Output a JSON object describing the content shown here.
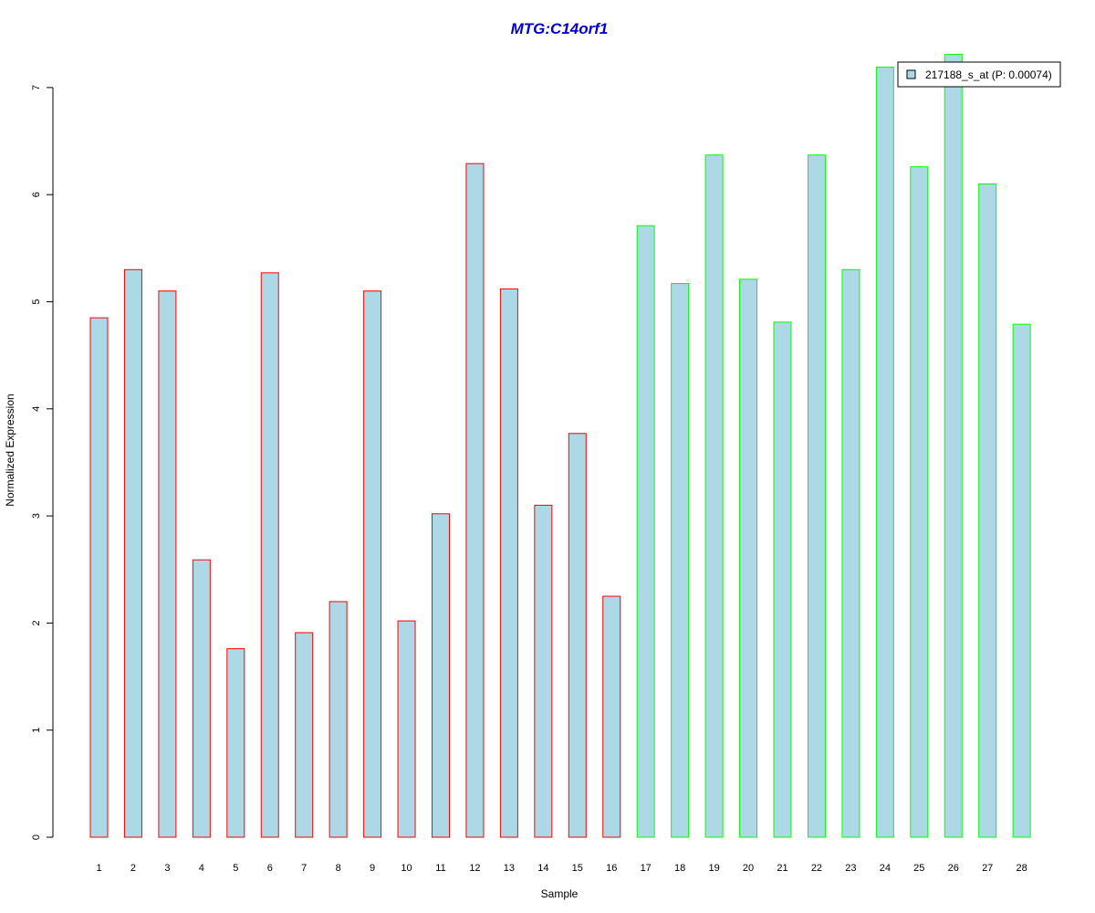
{
  "chart_data": {
    "type": "bar",
    "title": "MTG:C14orf1",
    "title_color": "#0000CC",
    "xlabel": "Sample",
    "ylabel": "Normalized Expression",
    "ylim": [
      0,
      7.3
    ],
    "yticks": [
      0,
      1,
      2,
      3,
      4,
      5,
      6,
      7
    ],
    "grid": false,
    "legend_position": "top-right",
    "bar_fill": "#ADD8E6",
    "categories": [
      "1",
      "2",
      "3",
      "4",
      "5",
      "6",
      "7",
      "8",
      "9",
      "10",
      "11",
      "12",
      "13",
      "14",
      "15",
      "16",
      "17",
      "18",
      "19",
      "20",
      "21",
      "22",
      "23",
      "24",
      "25",
      "26",
      "27",
      "28"
    ],
    "series": [
      {
        "name": "217188_s_at (P: 0.00074)",
        "values": [
          4.85,
          5.3,
          5.1,
          2.59,
          1.76,
          5.27,
          1.91,
          2.2,
          5.1,
          2.02,
          3.02,
          6.29,
          5.12,
          3.1,
          3.77,
          2.25,
          5.71,
          5.17,
          6.37,
          5.21,
          4.81,
          6.37,
          5.3,
          7.19,
          6.26,
          7.31,
          6.1,
          4.79
        ]
      }
    ],
    "group_border_colors": [
      "#FF0000",
      "#FF0000",
      "#FF0000",
      "#FF0000",
      "#FF0000",
      "#FF0000",
      "#FF0000",
      "#FF0000",
      "#FF0000",
      "#FF0000",
      "#FF0000",
      "#FF0000",
      "#FF0000",
      "#FF0000",
      "#FF0000",
      "#FF0000",
      "#00FF00",
      "#00FF00",
      "#00FF00",
      "#00FF00",
      "#00FF00",
      "#00FF00",
      "#00FF00",
      "#00FF00",
      "#00FF00",
      "#00FF00",
      "#00FF00",
      "#00FF00"
    ]
  }
}
